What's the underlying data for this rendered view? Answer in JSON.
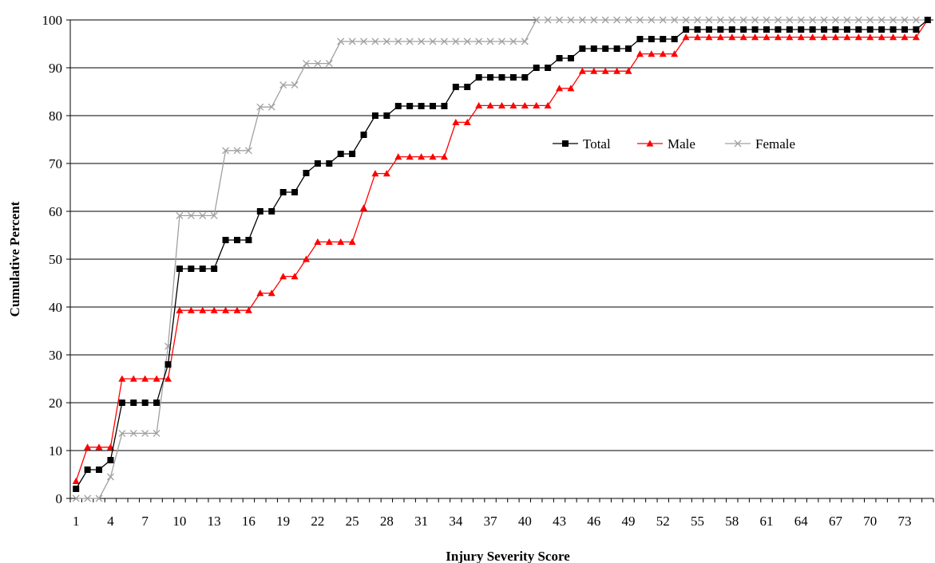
{
  "chart_data": {
    "type": "line",
    "xlabel": "Injury Severity Score",
    "ylabel": "Cumulative Percent",
    "xlim": [
      1,
      75
    ],
    "ylim": [
      0,
      100
    ],
    "x_tick_labels": [
      1,
      4,
      7,
      10,
      13,
      16,
      19,
      22,
      25,
      28,
      31,
      34,
      37,
      40,
      43,
      46,
      49,
      52,
      55,
      58,
      61,
      64,
      67,
      70,
      73
    ],
    "y_ticks": [
      0,
      10,
      20,
      30,
      40,
      50,
      60,
      70,
      80,
      90,
      100
    ],
    "grid": "horizontal",
    "legend_position": "upper-right inside plot",
    "x": [
      1,
      2,
      3,
      4,
      5,
      6,
      7,
      8,
      9,
      10,
      11,
      12,
      13,
      14,
      15,
      16,
      17,
      18,
      19,
      20,
      21,
      22,
      23,
      24,
      25,
      26,
      27,
      28,
      29,
      30,
      31,
      32,
      33,
      34,
      35,
      36,
      37,
      38,
      39,
      40,
      41,
      42,
      43,
      44,
      45,
      46,
      47,
      48,
      49,
      50,
      51,
      52,
      53,
      54,
      55,
      56,
      57,
      58,
      59,
      60,
      61,
      62,
      63,
      64,
      65,
      66,
      67,
      68,
      69,
      70,
      71,
      72,
      73,
      74,
      75
    ],
    "series": [
      {
        "name": "Total",
        "color": "#000000",
        "marker": "square",
        "values": [
          2,
          6,
          6,
          8,
          20,
          20,
          20,
          20,
          28,
          48,
          48,
          48,
          48,
          54,
          54,
          54,
          60,
          60,
          64,
          64,
          68,
          70,
          70,
          72,
          72,
          76,
          80,
          80,
          82,
          82,
          82,
          82,
          82,
          86,
          86,
          88,
          88,
          88,
          88,
          88,
          90,
          90,
          92,
          92,
          94,
          94,
          94,
          94,
          94,
          96,
          96,
          96,
          96,
          98,
          98,
          98,
          98,
          98,
          98,
          98,
          98,
          98,
          98,
          98,
          98,
          98,
          98,
          98,
          98,
          98,
          98,
          98,
          98,
          98,
          100
        ]
      },
      {
        "name": "Male",
        "color": "#ff0000",
        "marker": "triangle",
        "values": [
          3.6,
          10.7,
          10.7,
          10.7,
          25,
          25,
          25,
          25,
          25,
          39.3,
          39.3,
          39.3,
          39.3,
          39.3,
          39.3,
          39.3,
          42.9,
          42.9,
          46.4,
          46.4,
          50,
          53.6,
          53.6,
          53.6,
          53.6,
          60.7,
          67.9,
          67.9,
          71.4,
          71.4,
          71.4,
          71.4,
          71.4,
          78.6,
          78.6,
          82.1,
          82.1,
          82.1,
          82.1,
          82.1,
          82.1,
          82.1,
          85.7,
          85.7,
          89.3,
          89.3,
          89.3,
          89.3,
          89.3,
          92.9,
          92.9,
          92.9,
          92.9,
          96.4,
          96.4,
          96.4,
          96.4,
          96.4,
          96.4,
          96.4,
          96.4,
          96.4,
          96.4,
          96.4,
          96.4,
          96.4,
          96.4,
          96.4,
          96.4,
          96.4,
          96.4,
          96.4,
          96.4,
          96.4,
          100
        ]
      },
      {
        "name": "Female",
        "color": "#a0a0a0",
        "marker": "x",
        "values": [
          0,
          0,
          0,
          4.5,
          13.6,
          13.6,
          13.6,
          13.6,
          31.8,
          59.1,
          59.1,
          59.1,
          59.1,
          72.7,
          72.7,
          72.7,
          81.8,
          81.8,
          86.4,
          86.4,
          90.9,
          90.9,
          90.9,
          95.5,
          95.5,
          95.5,
          95.5,
          95.5,
          95.5,
          95.5,
          95.5,
          95.5,
          95.5,
          95.5,
          95.5,
          95.5,
          95.5,
          95.5,
          95.5,
          95.5,
          100,
          100,
          100,
          100,
          100,
          100,
          100,
          100,
          100,
          100,
          100,
          100,
          100,
          100,
          100,
          100,
          100,
          100,
          100,
          100,
          100,
          100,
          100,
          100,
          100,
          100,
          100,
          100,
          100,
          100,
          100,
          100,
          100,
          100,
          100
        ]
      }
    ]
  }
}
